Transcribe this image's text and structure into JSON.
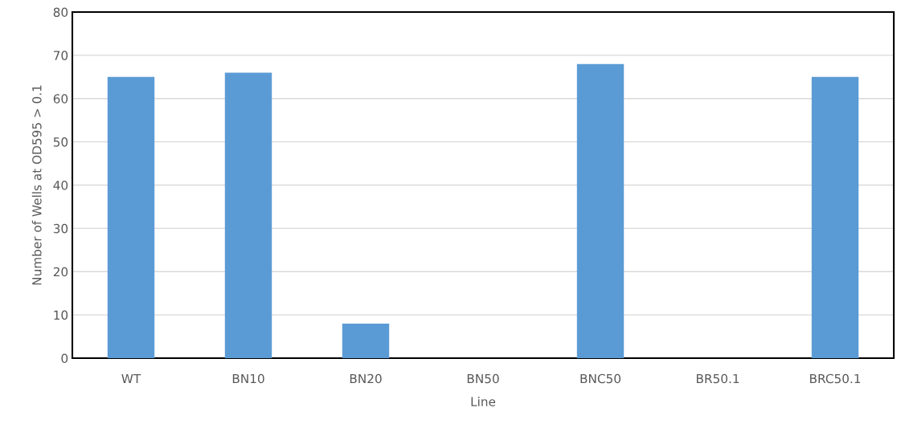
{
  "chart_data": {
    "type": "bar",
    "xlabel": "Line",
    "ylabel": "Number of Wells at OD595 > 0.1",
    "categories": [
      "WT",
      "BN10",
      "BN20",
      "BN50",
      "BNC50",
      "BR50.1",
      "BRC50.1"
    ],
    "values": [
      65,
      66,
      8,
      0,
      68,
      0,
      65
    ],
    "color": "#5b9bd5",
    "ylim": [
      0,
      80
    ],
    "yticks": [
      0,
      10,
      20,
      30,
      40,
      50,
      60,
      70,
      80
    ],
    "grid": "y"
  }
}
